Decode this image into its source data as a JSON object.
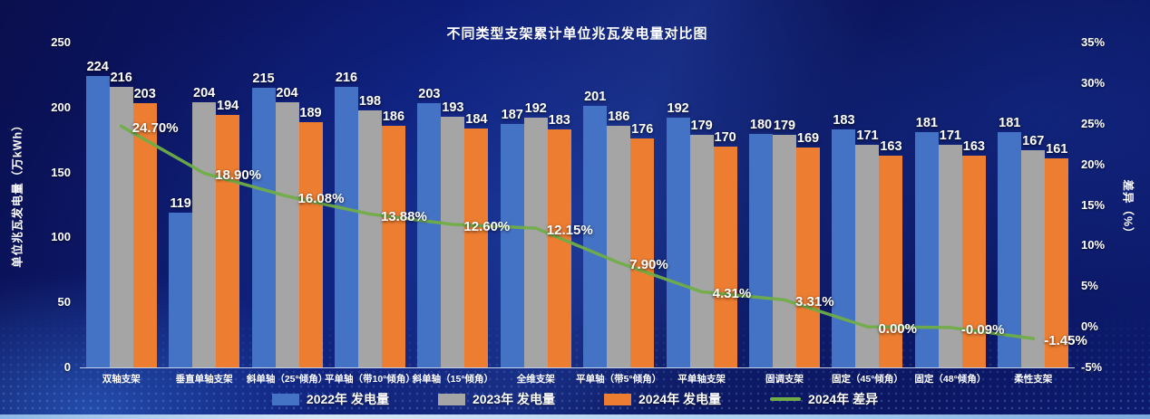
{
  "colors": {
    "background": "#0a1257",
    "text": "#ffffff",
    "bar_2022": "#4472C4",
    "bar_2023": "#A5A5A5",
    "bar_2024": "#ED7D31",
    "line_2024_diff": "#70AD47"
  },
  "chart_data": {
    "type": "bar",
    "title": "不同类型支架累计单位兆瓦发电量对比图",
    "grid": false,
    "legend_position": "bottom",
    "categories": [
      "双轴支架",
      "垂直单轴支架",
      "斜单轴（25°倾角）",
      "平单轴（带10°倾角）",
      "斜单轴（15°倾角）",
      "全维支架",
      "平单轴（带5°倾角）",
      "平单轴支架",
      "固调支架",
      "固定（45°倾角）",
      "固定（48°倾角）",
      "柔性支架"
    ],
    "series": [
      {
        "name": "2022年 发电量",
        "type": "bar",
        "color": "#4472C4",
        "axis": "left",
        "values": [
          224,
          119,
          215,
          216,
          203,
          187,
          201,
          192,
          180,
          183,
          181,
          181
        ]
      },
      {
        "name": "2023年 发电量",
        "type": "bar",
        "color": "#A5A5A5",
        "axis": "left",
        "values": [
          216,
          204,
          204,
          198,
          193,
          192,
          186,
          179,
          179,
          171,
          171,
          167
        ]
      },
      {
        "name": "2024年 发电量",
        "type": "bar",
        "color": "#ED7D31",
        "axis": "left",
        "values": [
          203,
          194,
          189,
          186,
          184,
          183,
          176,
          170,
          169,
          163,
          163,
          161
        ]
      },
      {
        "name": "2024年 差异",
        "type": "line",
        "color": "#70AD47",
        "axis": "right",
        "values": [
          24.7,
          18.9,
          16.08,
          13.88,
          12.6,
          12.15,
          7.9,
          4.31,
          3.31,
          0.0,
          -0.09,
          -1.45
        ],
        "labels": [
          "24.70%",
          "18.90%",
          "16.08%",
          "13.88%",
          "12.60%",
          "12.15%",
          "7.90%",
          "4.31%",
          "3.31%",
          "0.00%",
          "-0.09%",
          "-1.45%"
        ]
      }
    ],
    "left_axis": {
      "title": "单位兆瓦发电量（万kWh）",
      "min": 0,
      "max": 250,
      "step": 50,
      "ticks": [
        "0",
        "50",
        "100",
        "150",
        "200",
        "250"
      ]
    },
    "right_axis": {
      "title": "差异（%）",
      "min": -5,
      "max": 35,
      "step": 5,
      "ticks": [
        "-5%",
        "0%",
        "5%",
        "10%",
        "15%",
        "20%",
        "25%",
        "30%",
        "35%"
      ]
    }
  }
}
